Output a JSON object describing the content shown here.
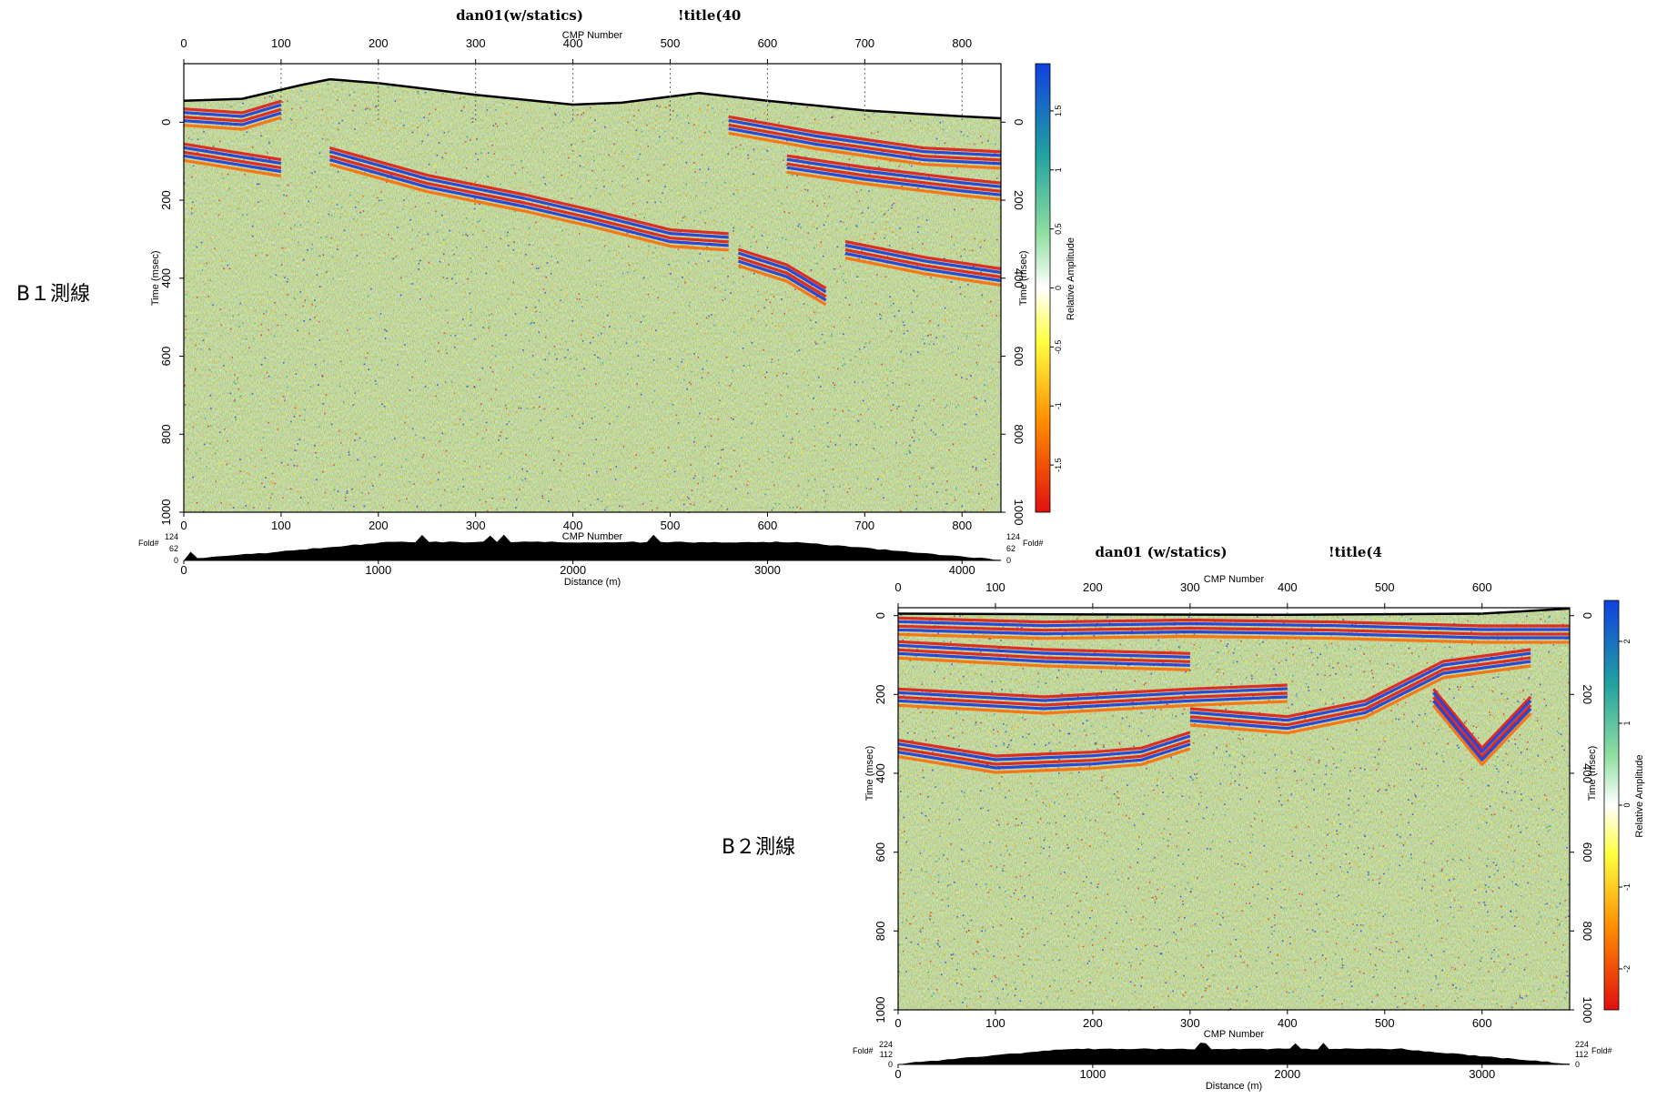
{
  "chart_data": [
    {
      "type": "heatmap",
      "line_label": "B１測線",
      "title": "dan01(w/statics)",
      "title2": "!title(40",
      "x_top_label": "CMP Number",
      "x_bottom_label": "Distance (m)",
      "y_label": "Time (msec)",
      "colorbar_label": "Relative Amplitude",
      "fold_label": "Fold#",
      "fold_ticks": [
        "124",
        "62",
        "0"
      ],
      "cmp_range": [
        0,
        840
      ],
      "cmp_ticks": [
        0,
        100,
        200,
        300,
        400,
        500,
        600,
        700,
        800
      ],
      "distance_ticks": [
        0,
        1000,
        2000,
        3000,
        4000
      ],
      "distance_max": 4200,
      "time_range": [
        -150,
        1000
      ],
      "time_ticks": [
        0,
        200,
        400,
        600,
        800,
        1000
      ],
      "colorbar_range": [
        -1.9,
        1.9
      ],
      "colorbar_ticks": [
        -1.5,
        -1,
        -0.5,
        0,
        0.5,
        1,
        1.5
      ],
      "colormap": [
        "#e01010",
        "#ff8c00",
        "#ffff40",
        "#90e0a0",
        "#20a0a0",
        "#1040e0"
      ],
      "topography": {
        "cmp": [
          0,
          60,
          120,
          150,
          200,
          300,
          400,
          450,
          530,
          600,
          700,
          800,
          840
        ],
        "time": [
          -55,
          -60,
          -95,
          -110,
          -100,
          -70,
          -45,
          -50,
          -75,
          -55,
          -30,
          -15,
          -10
        ]
      },
      "reflectors": [
        {
          "cmp": [
            0,
            60,
            100
          ],
          "time": [
            -20,
            -10,
            -40
          ]
        },
        {
          "cmp": [
            0,
            50,
            100
          ],
          "time": [
            70,
            90,
            110
          ]
        },
        {
          "cmp": [
            150,
            250,
            350,
            420,
            500,
            560
          ],
          "time": [
            80,
            150,
            200,
            240,
            290,
            300
          ]
        },
        {
          "cmp": [
            560,
            650,
            760,
            840
          ],
          "time": [
            0,
            40,
            80,
            90
          ]
        },
        {
          "cmp": [
            620,
            700,
            800,
            840
          ],
          "time": [
            100,
            130,
            160,
            170
          ]
        },
        {
          "cmp": [
            680,
            760,
            840
          ],
          "time": [
            320,
            360,
            390
          ]
        },
        {
          "cmp": [
            570,
            620,
            660
          ],
          "time": [
            340,
            380,
            440
          ]
        }
      ]
    },
    {
      "type": "heatmap",
      "line_label": "B２測線",
      "title": "dan01 (w/statics)",
      "title2": "!title(4",
      "x_top_label": "CMP Number",
      "x_bottom_label": "Distance (m)",
      "y_label": "Time (msec)",
      "colorbar_label": "Relative Amplitude",
      "fold_label": "Fold#",
      "fold_ticks": [
        "224",
        "112",
        "0"
      ],
      "cmp_range": [
        0,
        690
      ],
      "cmp_ticks": [
        0,
        100,
        200,
        300,
        400,
        500,
        600
      ],
      "distance_ticks": [
        0,
        1000,
        2000,
        3000
      ],
      "distance_max": 3450,
      "time_range": [
        -20,
        1000
      ],
      "time_ticks": [
        0,
        200,
        400,
        600,
        800,
        1000
      ],
      "colorbar_range": [
        -2.5,
        2.5
      ],
      "colorbar_ticks": [
        -2,
        -1,
        0,
        1,
        2
      ],
      "colormap": [
        "#e01010",
        "#ff8c00",
        "#ffff40",
        "#90e0a0",
        "#20a0a0",
        "#1040e0"
      ],
      "topography": {
        "cmp": [
          0,
          200,
          400,
          600,
          690
        ],
        "time": [
          -5,
          -3,
          -2,
          -5,
          -18
        ]
      },
      "reflectors": [
        {
          "cmp": [
            0,
            150,
            300,
            450,
            600,
            690
          ],
          "time": [
            20,
            30,
            25,
            30,
            40,
            40
          ]
        },
        {
          "cmp": [
            0,
            150,
            300
          ],
          "time": [
            80,
            100,
            110
          ]
        },
        {
          "cmp": [
            0,
            150,
            300,
            400
          ],
          "time": [
            200,
            220,
            200,
            190
          ]
        },
        {
          "cmp": [
            0,
            100,
            200,
            250,
            300
          ],
          "time": [
            330,
            370,
            360,
            350,
            310
          ]
        },
        {
          "cmp": [
            300,
            400,
            480,
            560,
            650
          ],
          "time": [
            250,
            270,
            230,
            130,
            100
          ]
        },
        {
          "cmp": [
            550,
            600,
            650
          ],
          "time": [
            200,
            350,
            220
          ]
        }
      ]
    }
  ]
}
